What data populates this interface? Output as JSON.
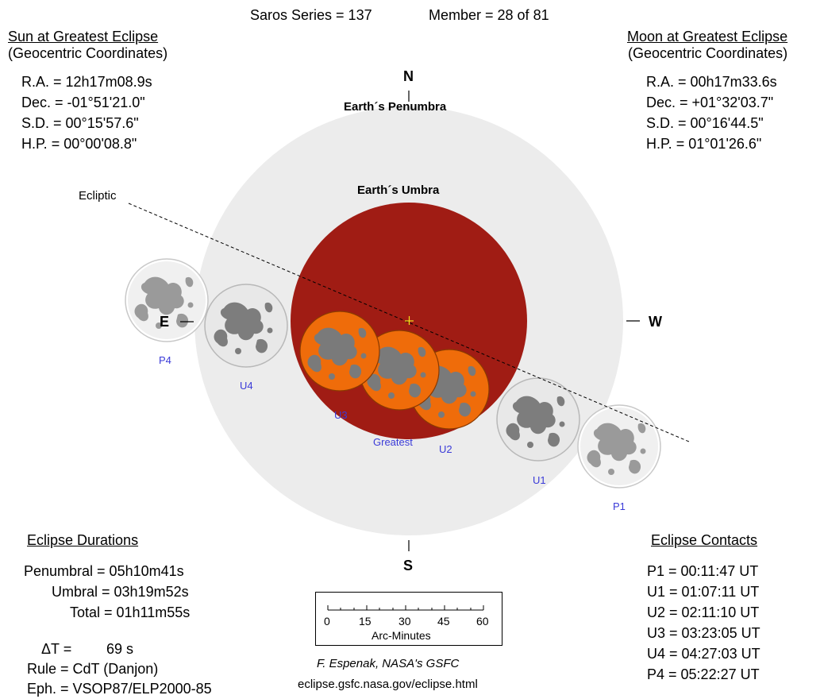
{
  "header": {
    "saros": "Saros Series = 137",
    "member": "Member = 28 of 81"
  },
  "sun": {
    "title": "Sun at Greatest Eclipse",
    "subtitle": "(Geocentric Coordinates)",
    "ra": "R.A. =  12h17m08.9s",
    "dec": "Dec. = -01°51'21.0\"",
    "sd": "S.D. =  00°15'57.6\"",
    "hp": "H.P. =  00°00'08.8\""
  },
  "moon": {
    "title": "Moon at Greatest Eclipse",
    "subtitle": "(Geocentric Coordinates)",
    "ra": "R.A. =  00h17m33.6s",
    "dec": "Dec. = +01°32'03.7\"",
    "sd": "S.D. =  00°16'44.5\"",
    "hp": "H.P. =  01°01'26.6\""
  },
  "diagram": {
    "north": "N",
    "south": "S",
    "east": "E",
    "west": "W",
    "penumbra_label": "Earth´s Penumbra",
    "umbra_label": "Earth´s Umbra",
    "ecliptic_label": "Ecliptic",
    "contacts": {
      "p4": "P4",
      "u4": "U4",
      "u3": "U3",
      "greatest": "Greatest",
      "u2": "U2",
      "u1": "U1",
      "p1": "P1"
    },
    "colors": {
      "penumbra": "#ececec",
      "umbra": "#a01c14",
      "moon_eclipsed": "#ef6c0a",
      "moon_plain": "#e8e8e8",
      "moon_dark": "#7d7d7d",
      "label_blue": "#3a3ad8",
      "center_marker": "#f2e21a"
    }
  },
  "durations": {
    "title": "Eclipse Durations",
    "penumbral": "Penumbral = 05h10m41s",
    "umbral": "Umbral = 03h19m52s",
    "total": "Total = 01h11m55s",
    "delta_t_label": "ΔT =",
    "delta_t_value": "69 s",
    "rule": "Rule = CdT (Danjon)",
    "eph": "Eph. = VSOP87/ELP2000-85"
  },
  "contacts_table": {
    "title": "Eclipse Contacts",
    "p1": "P1 = 00:11:47 UT",
    "u1": "U1 = 01:07:11 UT",
    "u2": "U2 = 02:11:10 UT",
    "u3": "U3 = 03:23:05 UT",
    "u4": "U4 = 04:27:03 UT",
    "p4": "P4 = 05:22:27 UT"
  },
  "scale": {
    "ticks": [
      "0",
      "15",
      "30",
      "45",
      "60"
    ],
    "label": "Arc-Minutes"
  },
  "credit": {
    "author": "F. Espenak, NASA's GSFC",
    "url": "eclipse.gsfc.nasa.gov/eclipse.html"
  }
}
